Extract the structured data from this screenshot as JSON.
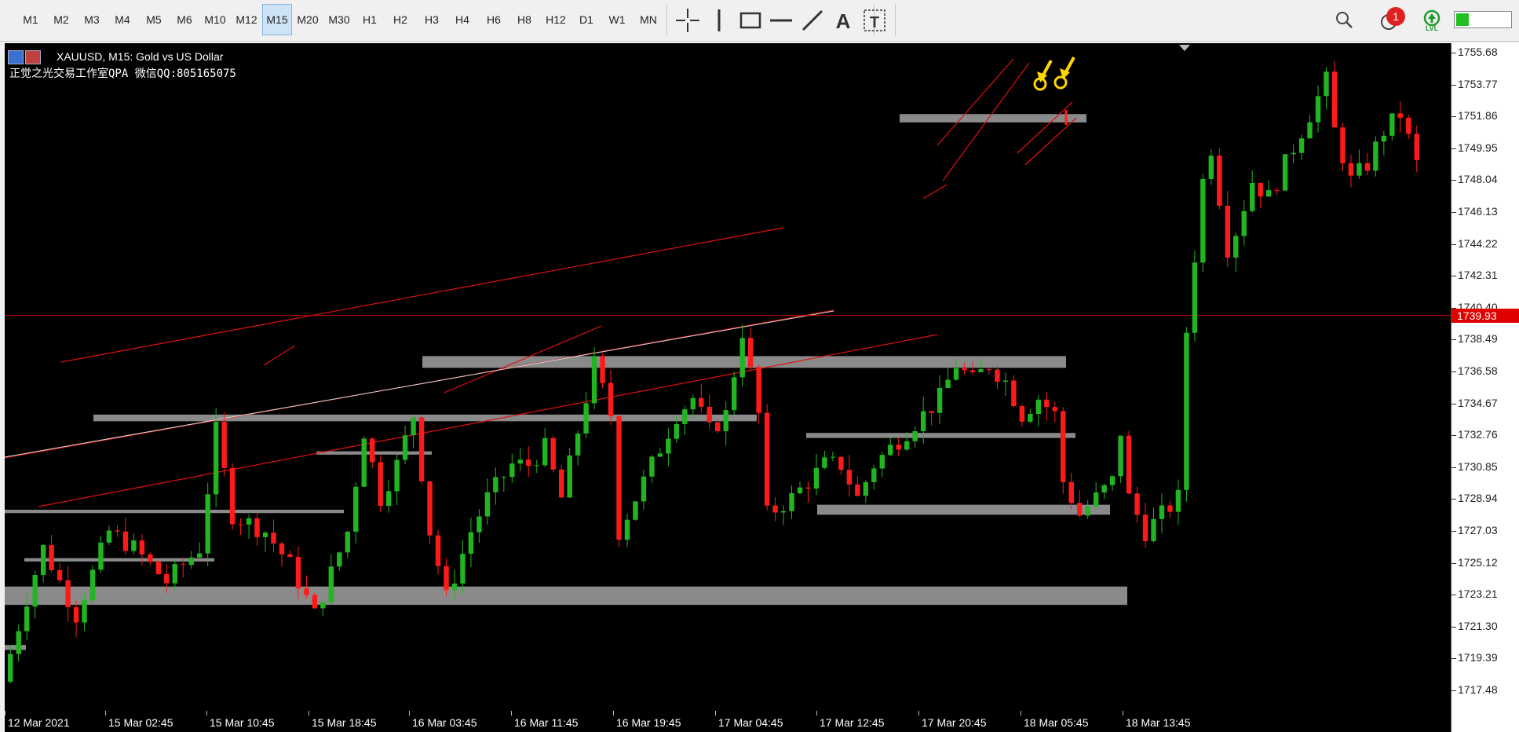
{
  "toolbar": {
    "timeframes": [
      "M1",
      "M2",
      "M3",
      "M4",
      "M5",
      "M6",
      "M10",
      "M12",
      "M15",
      "M20",
      "M30",
      "H1",
      "H2",
      "H3",
      "H4",
      "H6",
      "H8",
      "H12",
      "D1",
      "W1",
      "MN"
    ],
    "active_timeframe": "M15",
    "tools": [
      "crosshair-icon",
      "vertical-line-icon",
      "rectangle-icon",
      "horizontal-line-icon",
      "trendline-icon",
      "text-icon",
      "text-label-icon"
    ],
    "notification_count": "1",
    "lvl_label": "LVL"
  },
  "chart": {
    "symbol_line": "XAUUSD, M15:  Gold vs US Dollar",
    "subtitle": "正觉之光交易工作室QPA 微信QQ:805165075",
    "current_price": "1739.93",
    "colors": {
      "bull": "#21b521",
      "bear": "#ff1a1a",
      "background": "#000000",
      "level": "#8a8a8a",
      "channel": "#e01010",
      "marker": "#ffd700"
    }
  },
  "chart_data": {
    "type": "candlestick",
    "y_ticks": [
      "1755.68",
      "1753.77",
      "1751.86",
      "1749.95",
      "1748.04",
      "1746.13",
      "1744.22",
      "1742.31",
      "1740.40",
      "1738.49",
      "1736.58",
      "1734.67",
      "1732.76",
      "1730.85",
      "1728.94",
      "1727.03",
      "1725.12",
      "1723.21",
      "1721.30",
      "1719.39",
      "1717.48"
    ],
    "x_ticks": [
      "12 Mar 2021",
      "15 Mar 02:45",
      "15 Mar 10:45",
      "15 Mar 18:45",
      "16 Mar 03:45",
      "16 Mar 11:45",
      "16 Mar 19:45",
      "17 Mar 04:45",
      "17 Mar 12:45",
      "17 Mar 20:45",
      "18 Mar 05:45",
      "18 Mar 13:45"
    ],
    "ylim": [
      1716.5,
      1756.5
    ],
    "current_price": 1739.93,
    "price_path": [
      [
        0,
        1718
      ],
      [
        3,
        1723
      ],
      [
        5,
        1726
      ],
      [
        9,
        1722
      ],
      [
        13,
        1727
      ],
      [
        16,
        1726
      ],
      [
        20,
        1724
      ],
      [
        24,
        1726
      ],
      [
        26,
        1733
      ],
      [
        28,
        1728
      ],
      [
        32,
        1727
      ],
      [
        35,
        1725
      ],
      [
        38,
        1722
      ],
      [
        42,
        1727
      ],
      [
        44,
        1733
      ],
      [
        46,
        1729
      ],
      [
        48,
        1731
      ],
      [
        50,
        1734
      ],
      [
        52,
        1727
      ],
      [
        54,
        1723
      ],
      [
        57,
        1727
      ],
      [
        59,
        1729
      ],
      [
        62,
        1731
      ],
      [
        64,
        1731
      ],
      [
        66,
        1732
      ],
      [
        68,
        1729
      ],
      [
        70,
        1733
      ],
      [
        72,
        1737
      ],
      [
        74,
        1734
      ],
      [
        75,
        1727
      ],
      [
        78,
        1730
      ],
      [
        80,
        1732
      ],
      [
        82,
        1734
      ],
      [
        84,
        1735
      ],
      [
        86,
        1733
      ],
      [
        88,
        1734
      ],
      [
        90,
        1739
      ],
      [
        92,
        1734
      ],
      [
        93,
        1728
      ],
      [
        96,
        1729
      ],
      [
        98,
        1730
      ],
      [
        100,
        1731
      ],
      [
        102,
        1731
      ],
      [
        104,
        1729
      ],
      [
        106,
        1731
      ],
      [
        108,
        1732
      ],
      [
        112,
        1734
      ],
      [
        114,
        1735
      ],
      [
        116,
        1737
      ],
      [
        118,
        1736
      ],
      [
        120,
        1737
      ],
      [
        122,
        1736
      ],
      [
        124,
        1734
      ],
      [
        126,
        1735
      ],
      [
        128,
        1734
      ],
      [
        129,
        1730
      ],
      [
        131,
        1728
      ],
      [
        133,
        1729
      ],
      [
        135,
        1730
      ],
      [
        136,
        1733
      ],
      [
        137,
        1729
      ],
      [
        139,
        1727
      ],
      [
        141,
        1728
      ],
      [
        143,
        1729
      ],
      [
        144,
        1739
      ],
      [
        146,
        1748
      ],
      [
        147,
        1750
      ],
      [
        149,
        1744
      ],
      [
        150,
        1745
      ],
      [
        152,
        1748
      ],
      [
        154,
        1747
      ],
      [
        156,
        1749
      ],
      [
        158,
        1751
      ],
      [
        160,
        1753
      ],
      [
        161,
        1754
      ],
      [
        162,
        1751
      ],
      [
        164,
        1748
      ],
      [
        166,
        1749
      ],
      [
        168,
        1751
      ],
      [
        170,
        1752
      ],
      [
        172,
        1749
      ]
    ]
  }
}
